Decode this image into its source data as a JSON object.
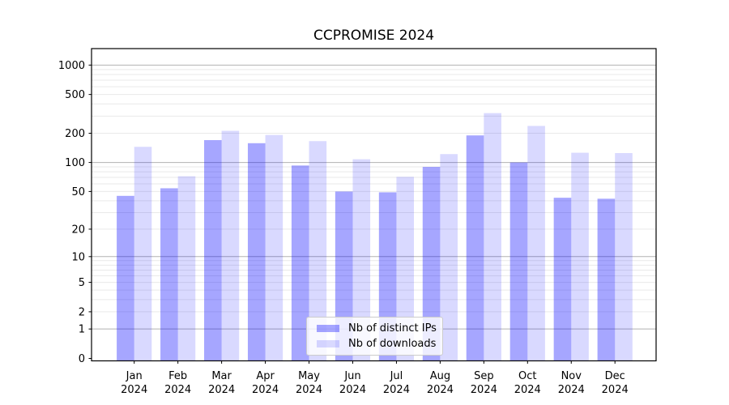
{
  "title": "CCPROMISE 2024",
  "chart_data": {
    "type": "bar",
    "title": "CCPROMISE 2024",
    "categories": [
      "Jan",
      "Feb",
      "Mar",
      "Apr",
      "May",
      "Jun",
      "Jul",
      "Aug",
      "Sep",
      "Oct",
      "Nov",
      "Dec"
    ],
    "year_label": "2024",
    "series": [
      {
        "name": "Nb of distinct IPs",
        "color": "#0000ff",
        "opacity": 0.35,
        "values": [
          45,
          54,
          170,
          158,
          93,
          50,
          49,
          90,
          190,
          100,
          43,
          42
        ]
      },
      {
        "name": "Nb of downloads",
        "color": "#0000ff",
        "opacity": 0.15,
        "values": [
          145,
          72,
          212,
          192,
          166,
          108,
          71,
          122,
          322,
          238,
          126,
          125
        ]
      }
    ],
    "xlabel": "",
    "ylabel": "",
    "yscale": "log1p",
    "ylim": [
      0,
      1480
    ],
    "y_ticks": [
      0,
      1,
      2,
      5,
      10,
      20,
      50,
      100,
      200,
      500,
      1000
    ],
    "y_minor_ticks": [
      3,
      4,
      6,
      7,
      8,
      9,
      30,
      40,
      60,
      70,
      80,
      90,
      300,
      400,
      600,
      700,
      800,
      900
    ],
    "grid": true,
    "legend_position": "lower-center"
  },
  "colors": {
    "major_grid": "#b2b2b2",
    "minor_grid": "#e9e9e9",
    "axis": "#000000",
    "tick_text": "#000000",
    "legend_border": "#cccccc"
  }
}
